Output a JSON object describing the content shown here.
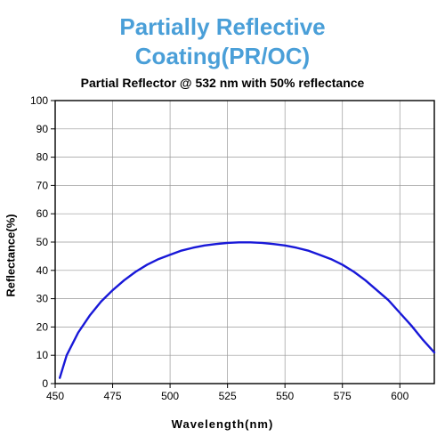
{
  "header": {
    "title_line1": "Partially Reflective",
    "title_line2": "Coating(PR/OC)",
    "title_color": "#4a9fd8",
    "title_fontsize": 26
  },
  "chart": {
    "type": "line",
    "subtitle": "Partial Reflector @ 532 nm with 50% reflectance",
    "xlabel": "Wavelength(nm)",
    "ylabel": "Reflectance(%)",
    "label_fontsize": 13,
    "xlim": [
      450,
      615
    ],
    "ylim": [
      0,
      100
    ],
    "xtick_step": 25,
    "ytick_step": 10,
    "xticks": [
      450,
      475,
      500,
      525,
      550,
      575,
      600
    ],
    "yticks": [
      0,
      10,
      20,
      30,
      40,
      50,
      60,
      70,
      80,
      90,
      100
    ],
    "grid_color": "#999999",
    "grid_width": 0.7,
    "axis_color": "#000000",
    "axis_width": 1.4,
    "background_color": "#ffffff",
    "tick_font_size": 12,
    "line_color": "#1818d8",
    "line_width": 2.4,
    "series": {
      "x": [
        452,
        455,
        460,
        465,
        470,
        475,
        480,
        485,
        490,
        495,
        500,
        505,
        510,
        515,
        520,
        525,
        530,
        535,
        540,
        545,
        550,
        555,
        560,
        565,
        570,
        575,
        580,
        585,
        590,
        595,
        600,
        605,
        610,
        615
      ],
      "y": [
        2,
        10,
        18,
        24,
        29,
        33,
        36.5,
        39.5,
        42,
        44,
        45.5,
        47,
        48,
        48.8,
        49.3,
        49.7,
        49.9,
        49.9,
        49.7,
        49.3,
        48.8,
        48,
        47,
        45.5,
        44,
        42,
        39.5,
        36.5,
        33,
        29.5,
        25,
        20.5,
        15.5,
        11
      ]
    }
  }
}
